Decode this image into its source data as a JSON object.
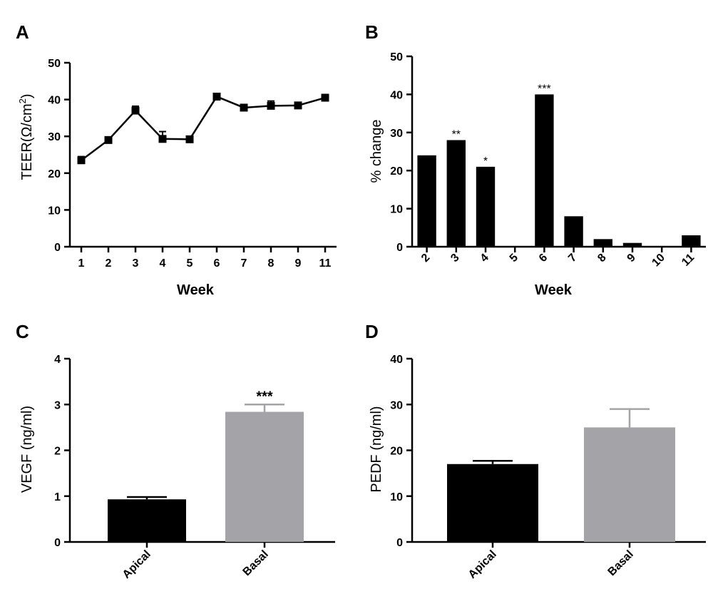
{
  "chart_data": [
    {
      "panel": "A",
      "type": "line",
      "x": [
        1,
        2,
        3,
        4,
        5,
        6,
        7,
        8,
        9,
        11
      ],
      "x_tick_labels": [
        "1",
        "2",
        "3",
        "4",
        "5",
        "6",
        "7",
        "8",
        "9",
        "11"
      ],
      "series": [
        {
          "values": [
            23.5,
            29,
            37,
            29.3,
            29.2,
            40.8,
            37.8,
            38.3,
            38.4,
            40.5
          ],
          "errors": [
            1.0,
            0.5,
            1.2,
            2.0,
            0.3,
            0.5,
            0.8,
            1.3,
            0.6,
            0.4
          ]
        }
      ],
      "xlabel": "Week",
      "ylabel": "TEER(Ω/cm²)",
      "ylabel_main": "TEER(Ω/cm",
      "ylabel_sup": "2",
      "ylabel_close": ")",
      "ylim": [
        0,
        50
      ],
      "yticks": [
        0,
        10,
        20,
        30,
        40,
        50
      ],
      "marker": "square",
      "color": "#000000"
    },
    {
      "panel": "B",
      "type": "bar",
      "categories": [
        "2",
        "3",
        "4",
        "5",
        "6",
        "7",
        "8",
        "9",
        "10",
        "11"
      ],
      "values": [
        24,
        28,
        21,
        0,
        40,
        8,
        2,
        1,
        0,
        3
      ],
      "annotations": [
        "",
        "**",
        "*",
        "",
        "***",
        "",
        "",
        "",
        "",
        ""
      ],
      "xlabel": "Week",
      "ylabel": "% change",
      "ylim": [
        0,
        50
      ],
      "yticks": [
        0,
        10,
        20,
        30,
        40,
        50
      ],
      "color": "#000000"
    },
    {
      "panel": "C",
      "type": "bar",
      "categories": [
        "Apical",
        "Basal"
      ],
      "values": [
        0.93,
        2.84
      ],
      "errors": [
        0.05,
        0.16
      ],
      "annotations": [
        "",
        "***"
      ],
      "xlabel": "",
      "ylabel": "VEGF (ng/ml)",
      "ylim": [
        0,
        4
      ],
      "yticks": [
        0,
        1,
        2,
        3,
        4
      ],
      "colors": [
        "#000000",
        "#a3a3a8"
      ]
    },
    {
      "panel": "D",
      "type": "bar",
      "categories": [
        "Apical",
        "Basal"
      ],
      "values": [
        17,
        25
      ],
      "errors": [
        0.7,
        4.0
      ],
      "annotations": [
        "",
        ""
      ],
      "xlabel": "",
      "ylabel": "PEDF (ng/ml)",
      "ylim": [
        0,
        40
      ],
      "yticks": [
        0,
        10,
        20,
        30,
        40
      ],
      "colors": [
        "#000000",
        "#a3a3a8"
      ]
    }
  ]
}
